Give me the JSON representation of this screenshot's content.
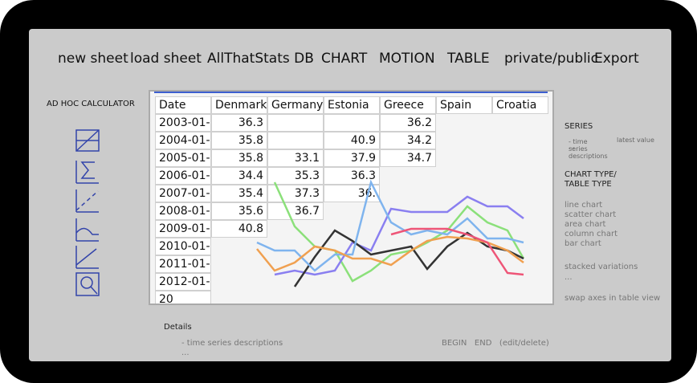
{
  "menu": [
    "new sheet",
    "load sheet",
    "AllThatStats DB",
    "CHART",
    "MOTION",
    "TABLE",
    "private/public",
    "Export"
  ],
  "sidebar": {
    "title": "AD HOC CALCULATOR"
  },
  "table": {
    "header": [
      "Date",
      "Denmark",
      "Germany",
      "Estonia",
      "Greece",
      "Spain",
      "Croatia"
    ],
    "rows": [
      [
        "2003-01-0",
        36.3,
        null,
        null,
        36.2
      ],
      [
        "2004-01-0",
        35.8,
        null,
        40.9,
        34.2
      ],
      [
        "2005-01-0",
        35.8,
        33.1,
        37.9,
        34.7
      ],
      [
        "2006-01-0",
        34.4,
        35.3,
        36.3
      ],
      [
        "2007-01-0",
        35.4,
        37.3,
        "36."
      ],
      [
        "2008-01-0",
        35.6,
        36.7
      ],
      [
        "2009-01-0",
        40.8
      ],
      [
        "2010-01-0"
      ],
      [
        "2011-01-0"
      ],
      [
        "2012-01-"
      ],
      [
        "20"
      ]
    ]
  },
  "right": {
    "series": "SERIES",
    "series_desc": "- time series descriptions",
    "latest": "latest value",
    "series_more": "...",
    "chart_type": "CHART TYPE/ TABLE TYPE",
    "types": [
      "line chart",
      "scatter chart",
      "area chart",
      "column chart",
      "bar chart"
    ],
    "stacked": "stacked variations",
    "stacked_more": "...",
    "swap": "swap axes in table view"
  },
  "details": {
    "title": "Details",
    "desc": "- time series descriptions",
    "more": "...",
    "actions": "BEGIN   END   (edit/delete)"
  }
}
